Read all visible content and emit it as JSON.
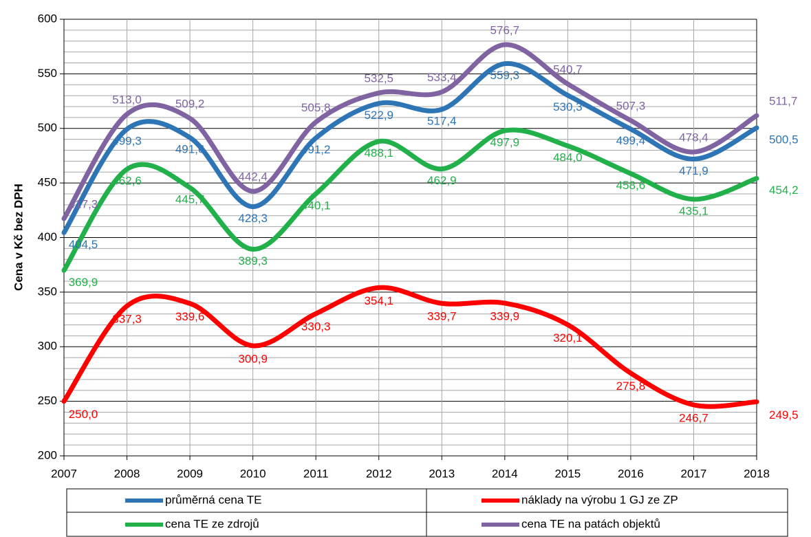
{
  "chart_data": {
    "type": "line",
    "y_label": "Cena v Kč bez DPH",
    "x": [
      2007,
      2008,
      2009,
      2010,
      2011,
      2012,
      2013,
      2014,
      2015,
      2016,
      2017,
      2018
    ],
    "xlim": [
      2007,
      2018
    ],
    "xticks": [
      2007,
      2008,
      2009,
      2010,
      2011,
      2012,
      2013,
      2014,
      2015,
      2016,
      2017,
      2018
    ],
    "ylim": [
      200,
      600
    ],
    "yticks": [
      200,
      250,
      300,
      350,
      400,
      450,
      500,
      550,
      600
    ],
    "yminorticks": [
      210,
      220,
      230,
      240,
      260,
      270,
      280,
      290,
      310,
      320,
      330,
      340,
      360,
      370,
      380,
      390,
      410,
      420,
      430,
      440,
      460,
      470,
      480,
      490,
      510,
      520,
      530,
      540,
      560,
      570,
      580,
      590
    ],
    "grid": true,
    "smooth": true,
    "legend": "bottom",
    "series": [
      {
        "name": "průměrná cena TE",
        "color": "#2e75b6",
        "values": [
          404.5,
          499.3,
          491.6,
          428.3,
          491.2,
          522.9,
          517.4,
          559.3,
          530.3,
          499.4,
          471.9,
          500.5
        ],
        "value_labels": [
          "404,5",
          "499,3",
          "491,6",
          "428,3",
          "491,2",
          "522,9",
          "517,4",
          "559,3",
          "530,3",
          "499,4",
          "471,9",
          "500,5"
        ]
      },
      {
        "name": "náklady na výrobu 1 GJ ze ZP",
        "color": "#ff0000",
        "values": [
          250.0,
          337.3,
          339.6,
          300.9,
          330.3,
          354.1,
          339.7,
          339.9,
          320.1,
          275.8,
          246.7,
          249.5
        ],
        "value_labels": [
          "250,0",
          "337,3",
          "339,6",
          "300,9",
          "330,3",
          "354,1",
          "339,7",
          "339,9",
          "320,1",
          "275,8",
          "246,7",
          "249,5"
        ]
      },
      {
        "name": "cena TE ze zdrojů",
        "color": "#22b04b",
        "values": [
          369.9,
          462.6,
          445.7,
          389.3,
          440.1,
          488.1,
          462.9,
          497.9,
          484.0,
          458.6,
          435.1,
          454.2
        ],
        "value_labels": [
          "369,9",
          "462,6",
          "445,7",
          "389,3",
          "440,1",
          "488,1",
          "462,9",
          "497,9",
          "484,0",
          "458,6",
          "435,1",
          "454,2"
        ]
      },
      {
        "name": "cena TE na patách objektů",
        "color": "#8064a2",
        "values": [
          417.3,
          513.0,
          509.2,
          442.4,
          505.8,
          532.5,
          533.4,
          576.7,
          540.7,
          507.3,
          478.4,
          511.7
        ],
        "value_labels": [
          "417,3",
          "513,0",
          "509,2",
          "442,4",
          "505,8",
          "532,5",
          "533,4",
          "576,7",
          "540,7",
          "507,3",
          "478,4",
          "511,7"
        ]
      }
    ]
  }
}
